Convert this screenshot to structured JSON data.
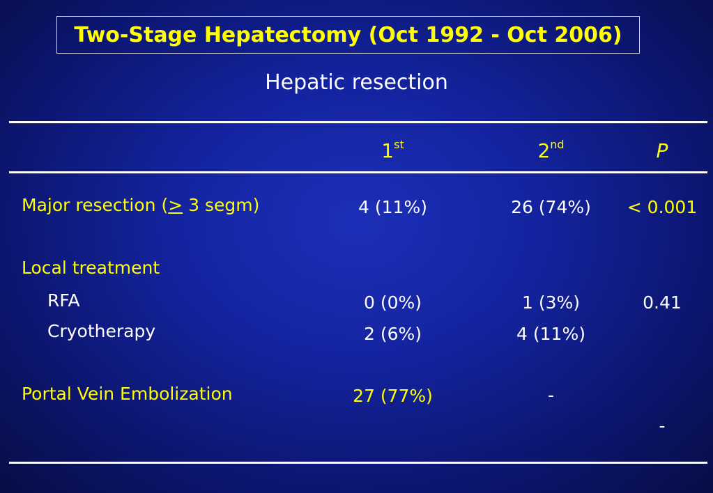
{
  "title": "Two-Stage Hepatectomy (Oct 1992 - Oct 2006)",
  "subtitle": "Hepatic resection",
  "columns": {
    "c1_base": "1",
    "c1_sup": "st",
    "c2_base": "2",
    "c2_sup": "nd",
    "c3": "P"
  },
  "rows": {
    "major": {
      "label_before": "Major resection (",
      "label_symbol": ">",
      "label_after": " 3 segm)",
      "c1": "4 (11%)",
      "c2": "26 (74%)",
      "c3": "< 0.001"
    },
    "local": {
      "label": "Local treatment"
    },
    "rfa": {
      "label": "RFA",
      "c1": "0 (0%)",
      "c2": "1 (3%)",
      "c3": "0.41"
    },
    "cryo": {
      "label": "Cryotherapy",
      "c1": "2 (6%)",
      "c2": "4 (11%)"
    },
    "pve": {
      "label": "Portal Vein Embolization",
      "c1": "27 (77%)",
      "c2": "-",
      "c3": "-"
    }
  },
  "colors": {
    "highlight": "#ffff00",
    "text": "#ffffff"
  }
}
